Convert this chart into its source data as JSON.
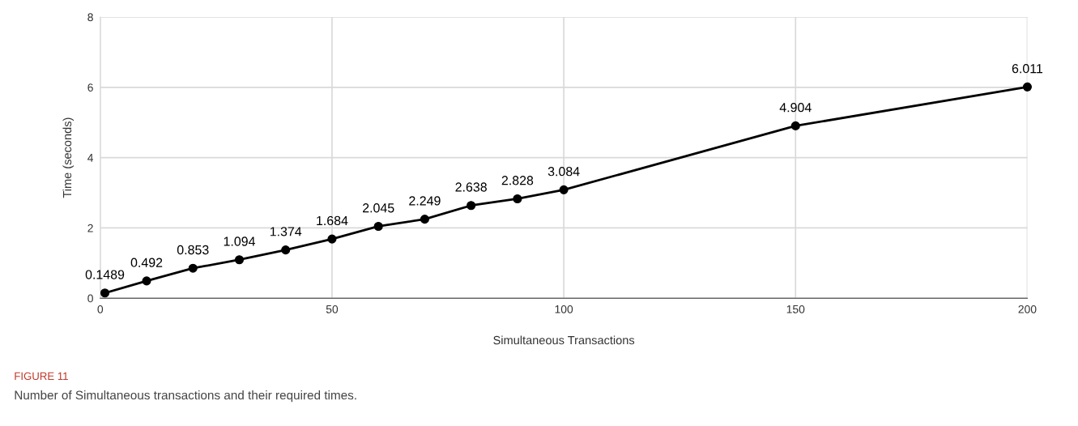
{
  "chart_data": {
    "type": "line",
    "xlabel": "Simultaneous Transactions",
    "ylabel": "Time (seconds)",
    "x": [
      1,
      10,
      20,
      30,
      40,
      50,
      60,
      70,
      80,
      90,
      100,
      150,
      200
    ],
    "series": [
      {
        "color": "#000000",
        "values": [
          0.1489,
          0.492,
          0.853,
          1.094,
          1.374,
          1.684,
          2.045,
          2.249,
          2.638,
          2.828,
          3.084,
          4.904,
          6.011
        ]
      }
    ],
    "value_labels": [
      "0.1489",
      "0.492",
      "0.853",
      "1.094",
      "1.374",
      "1.684",
      "2.045",
      "2.249",
      "2.638",
      "2.828",
      "3.084",
      "4.904",
      "6.011"
    ],
    "xlim": [
      0,
      200
    ],
    "xticks": [
      0,
      50,
      100,
      150,
      200
    ],
    "ylim": [
      0,
      8
    ],
    "yticks": [
      0,
      2,
      4,
      6,
      8
    ],
    "grid": true,
    "marker": "circle",
    "line_style": "solid",
    "annotations": [
      "FIGURE 11",
      "Number of Simultaneous transactions and their required times."
    ]
  }
}
